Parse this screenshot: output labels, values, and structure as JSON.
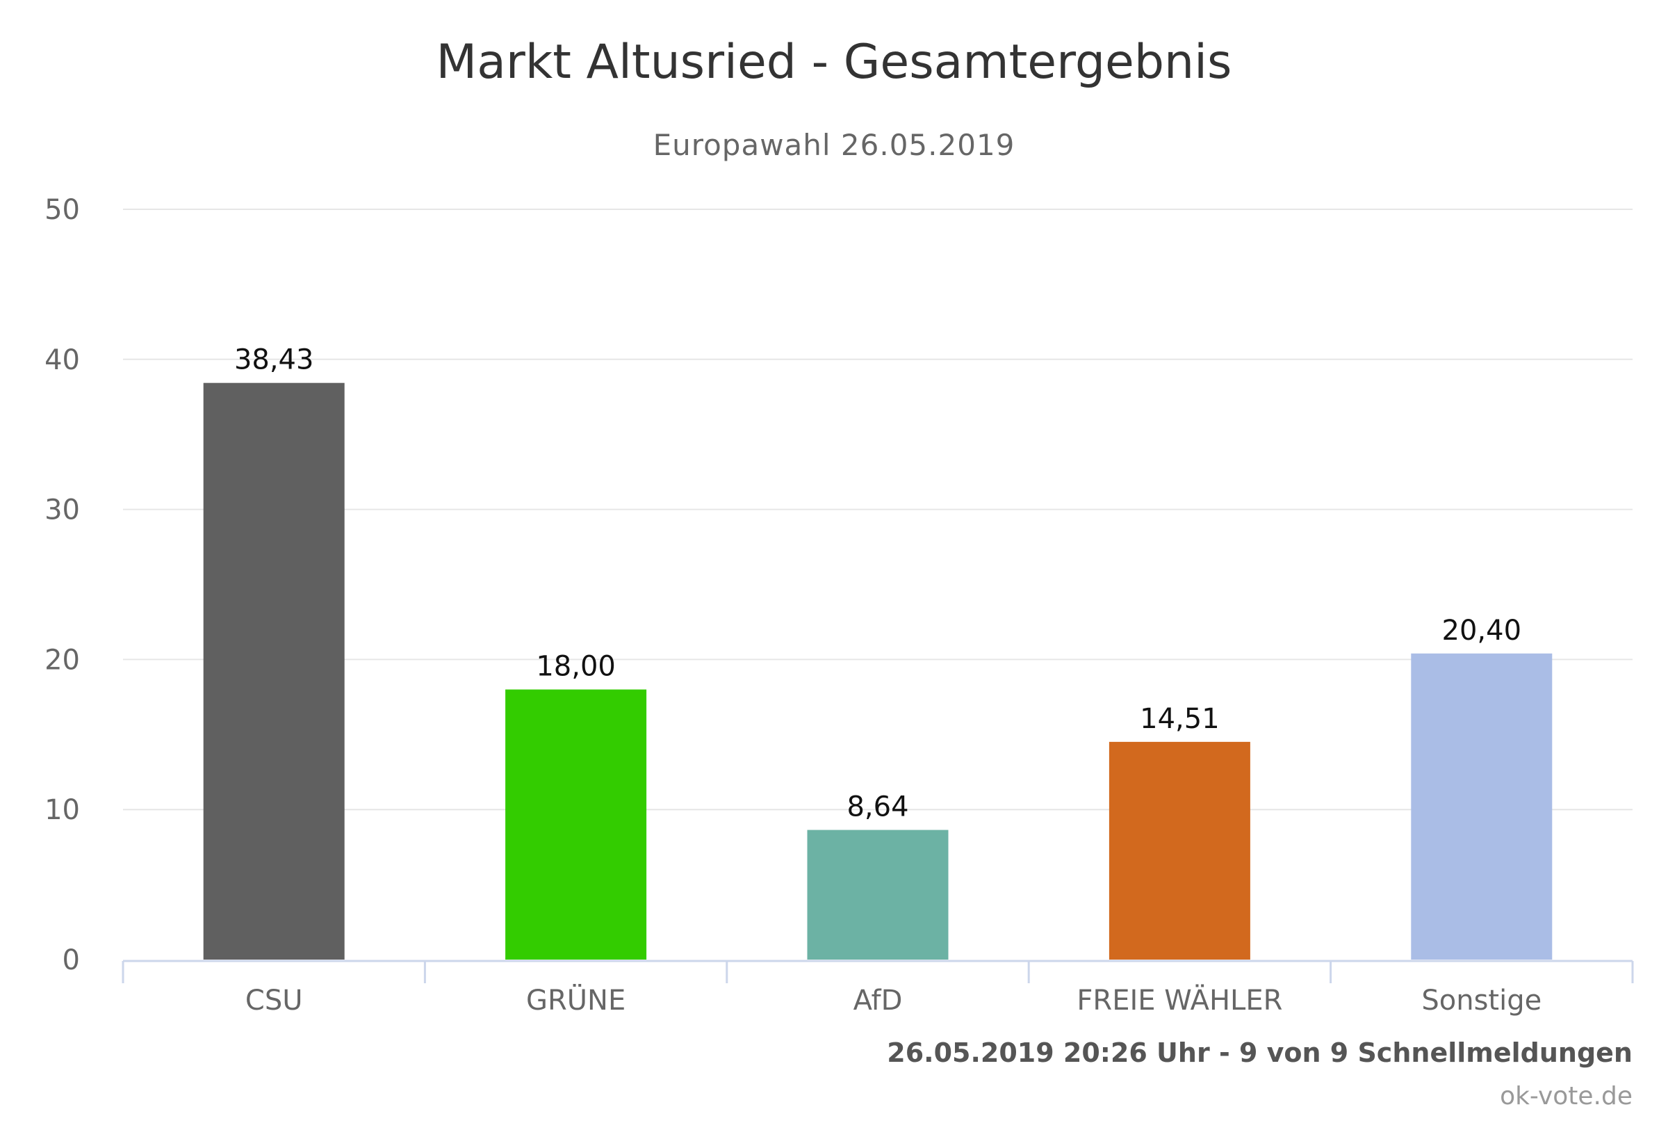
{
  "header": {
    "title": "Markt Altusried - Gesamtergebnis",
    "subtitle": "Europawahl 26.05.2019"
  },
  "footer": {
    "status": "26.05.2019 20:26 Uhr - 9 von 9 Schnellmeldungen",
    "credits": "ok-vote.de"
  },
  "chart_data": {
    "type": "bar",
    "title": "Markt Altusried - Gesamtergebnis",
    "subtitle": "Europawahl 26.05.2019",
    "categories": [
      "CSU",
      "GRÜNE",
      "AfD",
      "FREIE WÄHLER",
      "Sonstige"
    ],
    "values": [
      38.43,
      18.0,
      8.64,
      14.51,
      20.4
    ],
    "value_labels": [
      "38,43",
      "18,00",
      "8,64",
      "14,51",
      "20,40"
    ],
    "colors": [
      "#606060",
      "#33cc00",
      "#6cb2a4",
      "#d2691e",
      "#aabde6"
    ],
    "yticks": [
      0,
      10,
      20,
      30,
      40,
      50
    ],
    "ylim": [
      0,
      50
    ],
    "xlabel": "",
    "ylabel": "",
    "grid": true,
    "legend": "none"
  }
}
